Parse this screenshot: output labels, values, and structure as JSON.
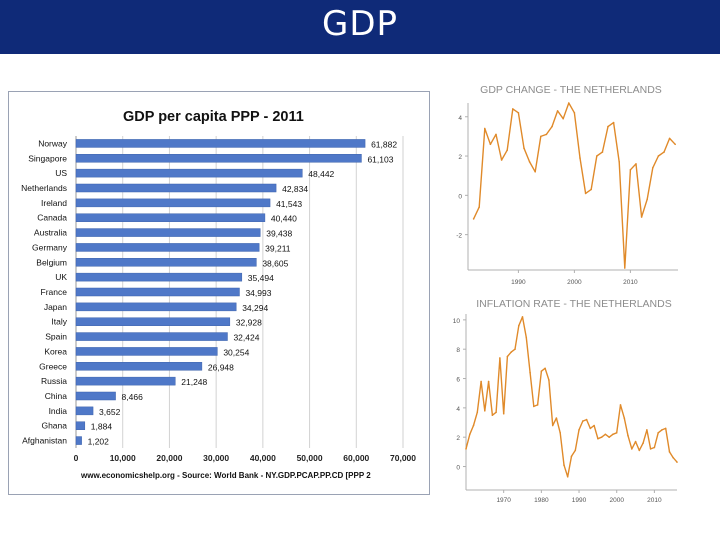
{
  "slide": {
    "title": "GDP"
  },
  "colors": {
    "title_bar": "#0f2a78",
    "bar_fill": "#4f78c8",
    "line": "#e08a2a"
  },
  "chart_data": [
    {
      "type": "bar",
      "orientation": "horizontal",
      "title": "GDP per capita PPP - 2011",
      "categories": [
        "Norway",
        "Singapore",
        "US",
        "Netherlands",
        "Ireland",
        "Canada",
        "Australia",
        "Germany",
        "Belgium",
        "UK",
        "France",
        "Japan",
        "Italy",
        "Spain",
        "Korea",
        "Greece",
        "Russia",
        "China",
        "India",
        "Ghana",
        "Afghanistan"
      ],
      "values": [
        61882,
        61103,
        48442,
        42834,
        41543,
        40440,
        39438,
        39211,
        38605,
        35494,
        34993,
        34294,
        32928,
        32424,
        30254,
        26948,
        21248,
        8466,
        3652,
        1884,
        1202
      ],
      "value_labels": [
        "61,882",
        "61,103",
        "48,442",
        "42,834",
        "41,543",
        "40,440",
        "39,438",
        "39,211",
        "38,605",
        "35,494",
        "34,993",
        "34,294",
        "32,928",
        "32,424",
        "30,254",
        "26,948",
        "21,248",
        "8,466",
        "3,652",
        "1,884",
        "1,202"
      ],
      "xlim": [
        0,
        70000
      ],
      "xticks": [
        0,
        10000,
        20000,
        30000,
        40000,
        50000,
        60000,
        70000
      ],
      "xtick_labels": [
        "0",
        "10,000",
        "20,000",
        "30,000",
        "40,000",
        "50,000",
        "60,000",
        "70,000"
      ],
      "source": "www.economicshelp.org - Source: World Bank - NY.GDP.PCAP.PP.CD [PPP 2"
    },
    {
      "type": "line",
      "title": "GDP CHANGE - THE NETHERLANDS",
      "x": [
        1982,
        1983,
        1984,
        1985,
        1986,
        1987,
        1988,
        1989,
        1990,
        1991,
        1992,
        1993,
        1994,
        1995,
        1996,
        1997,
        1998,
        1999,
        2000,
        2001,
        2002,
        2003,
        2004,
        2005,
        2006,
        2007,
        2008,
        2009,
        2010,
        2011,
        2012,
        2013,
        2014,
        2015,
        2016,
        2017,
        2018
      ],
      "y": [
        -1.2,
        -0.6,
        3.4,
        2.6,
        3.1,
        1.8,
        2.3,
        4.4,
        4.2,
        2.4,
        1.7,
        1.2,
        3.0,
        3.1,
        3.5,
        4.3,
        3.9,
        4.7,
        4.2,
        1.9,
        0.1,
        0.3,
        2.0,
        2.2,
        3.5,
        3.7,
        1.7,
        -3.7,
        1.3,
        1.6,
        -1.1,
        -0.2,
        1.4,
        2.0,
        2.2,
        2.9,
        2.6
      ],
      "xticks": [
        1990,
        2000,
        2010
      ],
      "yticks": [
        -2,
        0,
        2,
        4
      ],
      "xlim": [
        1981,
        2018.5
      ],
      "ylim": [
        -3.8,
        4.7
      ]
    },
    {
      "type": "line",
      "title": "INFLATION RATE - THE NETHERLANDS",
      "x": [
        1960,
        1961,
        1962,
        1963,
        1964,
        1965,
        1966,
        1967,
        1968,
        1969,
        1970,
        1971,
        1972,
        1973,
        1974,
        1975,
        1976,
        1977,
        1978,
        1979,
        1980,
        1981,
        1982,
        1983,
        1984,
        1985,
        1986,
        1987,
        1988,
        1989,
        1990,
        1991,
        1992,
        1993,
        1994,
        1995,
        1996,
        1997,
        1998,
        1999,
        2000,
        2001,
        2002,
        2003,
        2004,
        2005,
        2006,
        2007,
        2008,
        2009,
        2010,
        2011,
        2012,
        2013,
        2014,
        2015,
        2016
      ],
      "y": [
        1.2,
        2.2,
        2.8,
        3.7,
        5.8,
        3.8,
        5.8,
        3.5,
        3.7,
        7.4,
        3.6,
        7.5,
        7.8,
        8.0,
        9.6,
        10.2,
        8.8,
        6.4,
        4.1,
        4.2,
        6.5,
        6.7,
        5.9,
        2.8,
        3.3,
        2.3,
        0.1,
        -0.7,
        0.7,
        1.1,
        2.5,
        3.1,
        3.2,
        2.6,
        2.8,
        1.9,
        2.0,
        2.2,
        2.0,
        2.2,
        2.3,
        4.2,
        3.3,
        2.1,
        1.2,
        1.7,
        1.1,
        1.6,
        2.5,
        1.2,
        1.3,
        2.3,
        2.5,
        2.6,
        1.0,
        0.6,
        0.3
      ],
      "xticks": [
        1970,
        1980,
        1990,
        2000,
        2010
      ],
      "yticks": [
        0,
        2,
        4,
        6,
        8,
        10
      ],
      "xlim": [
        1960,
        2016
      ],
      "ylim": [
        -1.6,
        10.4
      ]
    }
  ]
}
